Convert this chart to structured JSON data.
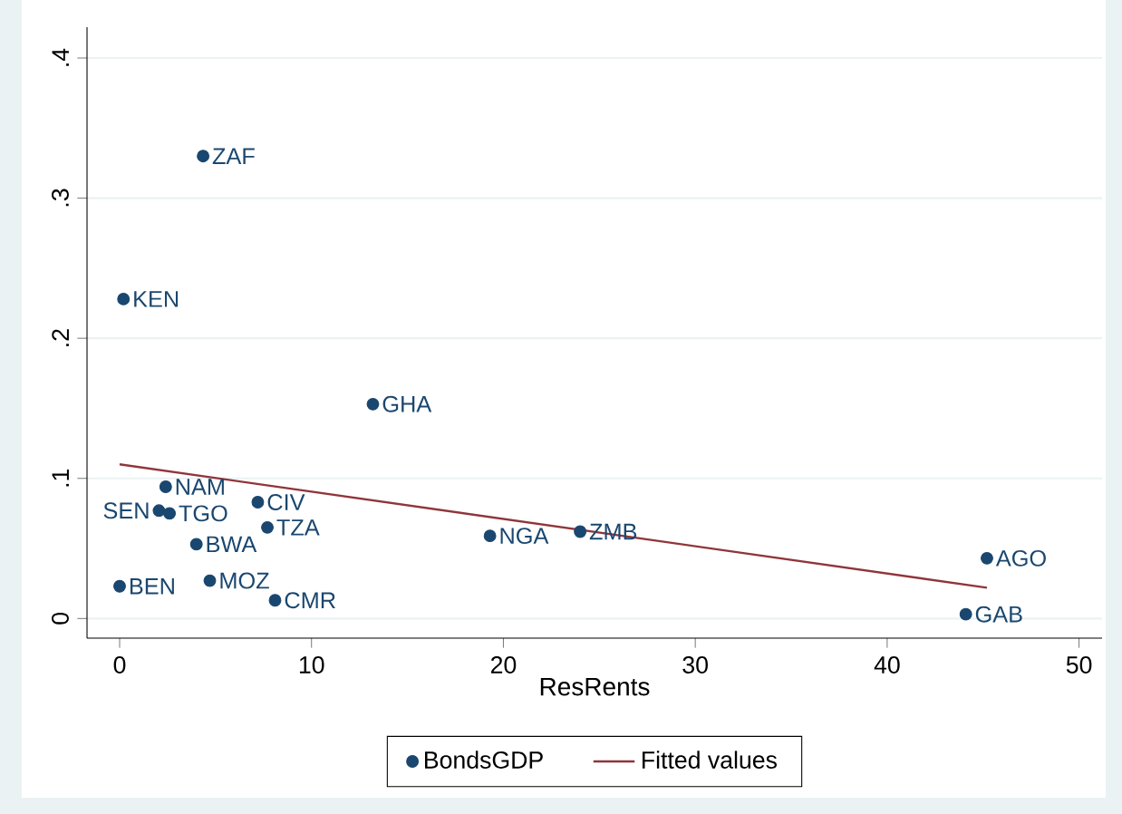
{
  "chart_data": {
    "type": "scatter",
    "xlabel": "ResRents",
    "x": [
      4.35,
      0.2,
      13.2,
      2.4,
      2.05,
      2.6,
      7.2,
      7.7,
      4.0,
      0.0,
      4.7,
      8.1,
      19.3,
      24.0,
      45.2,
      44.1
    ],
    "series": [
      {
        "name": "BondsGDP",
        "color": "#1a476f",
        "marker": "circle",
        "values": [
          0.33,
          0.228,
          0.153,
          0.094,
          0.077,
          0.075,
          0.083,
          0.065,
          0.053,
          0.023,
          0.027,
          0.013,
          0.059,
          0.062,
          0.043,
          0.003
        ]
      },
      {
        "name": "Fitted values",
        "type": "line",
        "color": "#90353b",
        "marker": "none",
        "x": [
          0.0,
          45.2
        ],
        "values": [
          0.11,
          0.022
        ]
      }
    ],
    "annotations": [
      {
        "text": "ZAF",
        "x": 4.35,
        "y": 0.33
      },
      {
        "text": "KEN",
        "x": 0.2,
        "y": 0.228
      },
      {
        "text": "GHA",
        "x": 13.2,
        "y": 0.153
      },
      {
        "text": "NAM",
        "x": 2.4,
        "y": 0.094
      },
      {
        "text": "SEN",
        "x": 2.05,
        "y": 0.077
      },
      {
        "text": "TGO",
        "x": 2.6,
        "y": 0.075
      },
      {
        "text": "CIV",
        "x": 7.2,
        "y": 0.083
      },
      {
        "text": "TZA",
        "x": 7.7,
        "y": 0.065
      },
      {
        "text": "BWA",
        "x": 4.0,
        "y": 0.053
      },
      {
        "text": "BEN",
        "x": 0.0,
        "y": 0.023
      },
      {
        "text": "MOZ",
        "x": 4.7,
        "y": 0.027
      },
      {
        "text": "CMR",
        "x": 8.1,
        "y": 0.013
      },
      {
        "text": "NGA",
        "x": 19.3,
        "y": 0.059
      },
      {
        "text": "ZMB",
        "x": 24.0,
        "y": 0.062
      },
      {
        "text": "AGO",
        "x": 45.2,
        "y": 0.043
      },
      {
        "text": "GAB",
        "x": 44.1,
        "y": 0.003
      }
    ],
    "xlim": [
      -1.7,
      51.2
    ],
    "ylim": [
      -0.014,
      0.422
    ],
    "xticks": [
      0,
      10,
      20,
      30,
      40,
      50
    ],
    "yticks": [
      {
        "value": 0,
        "label": "0"
      },
      {
        "value": 0.1,
        "label": ".1"
      },
      {
        "value": 0.2,
        "label": ".2"
      },
      {
        "value": 0.3,
        "label": ".3"
      },
      {
        "value": 0.4,
        "label": ".4"
      }
    ],
    "grid": "y",
    "legend": "bottom"
  }
}
